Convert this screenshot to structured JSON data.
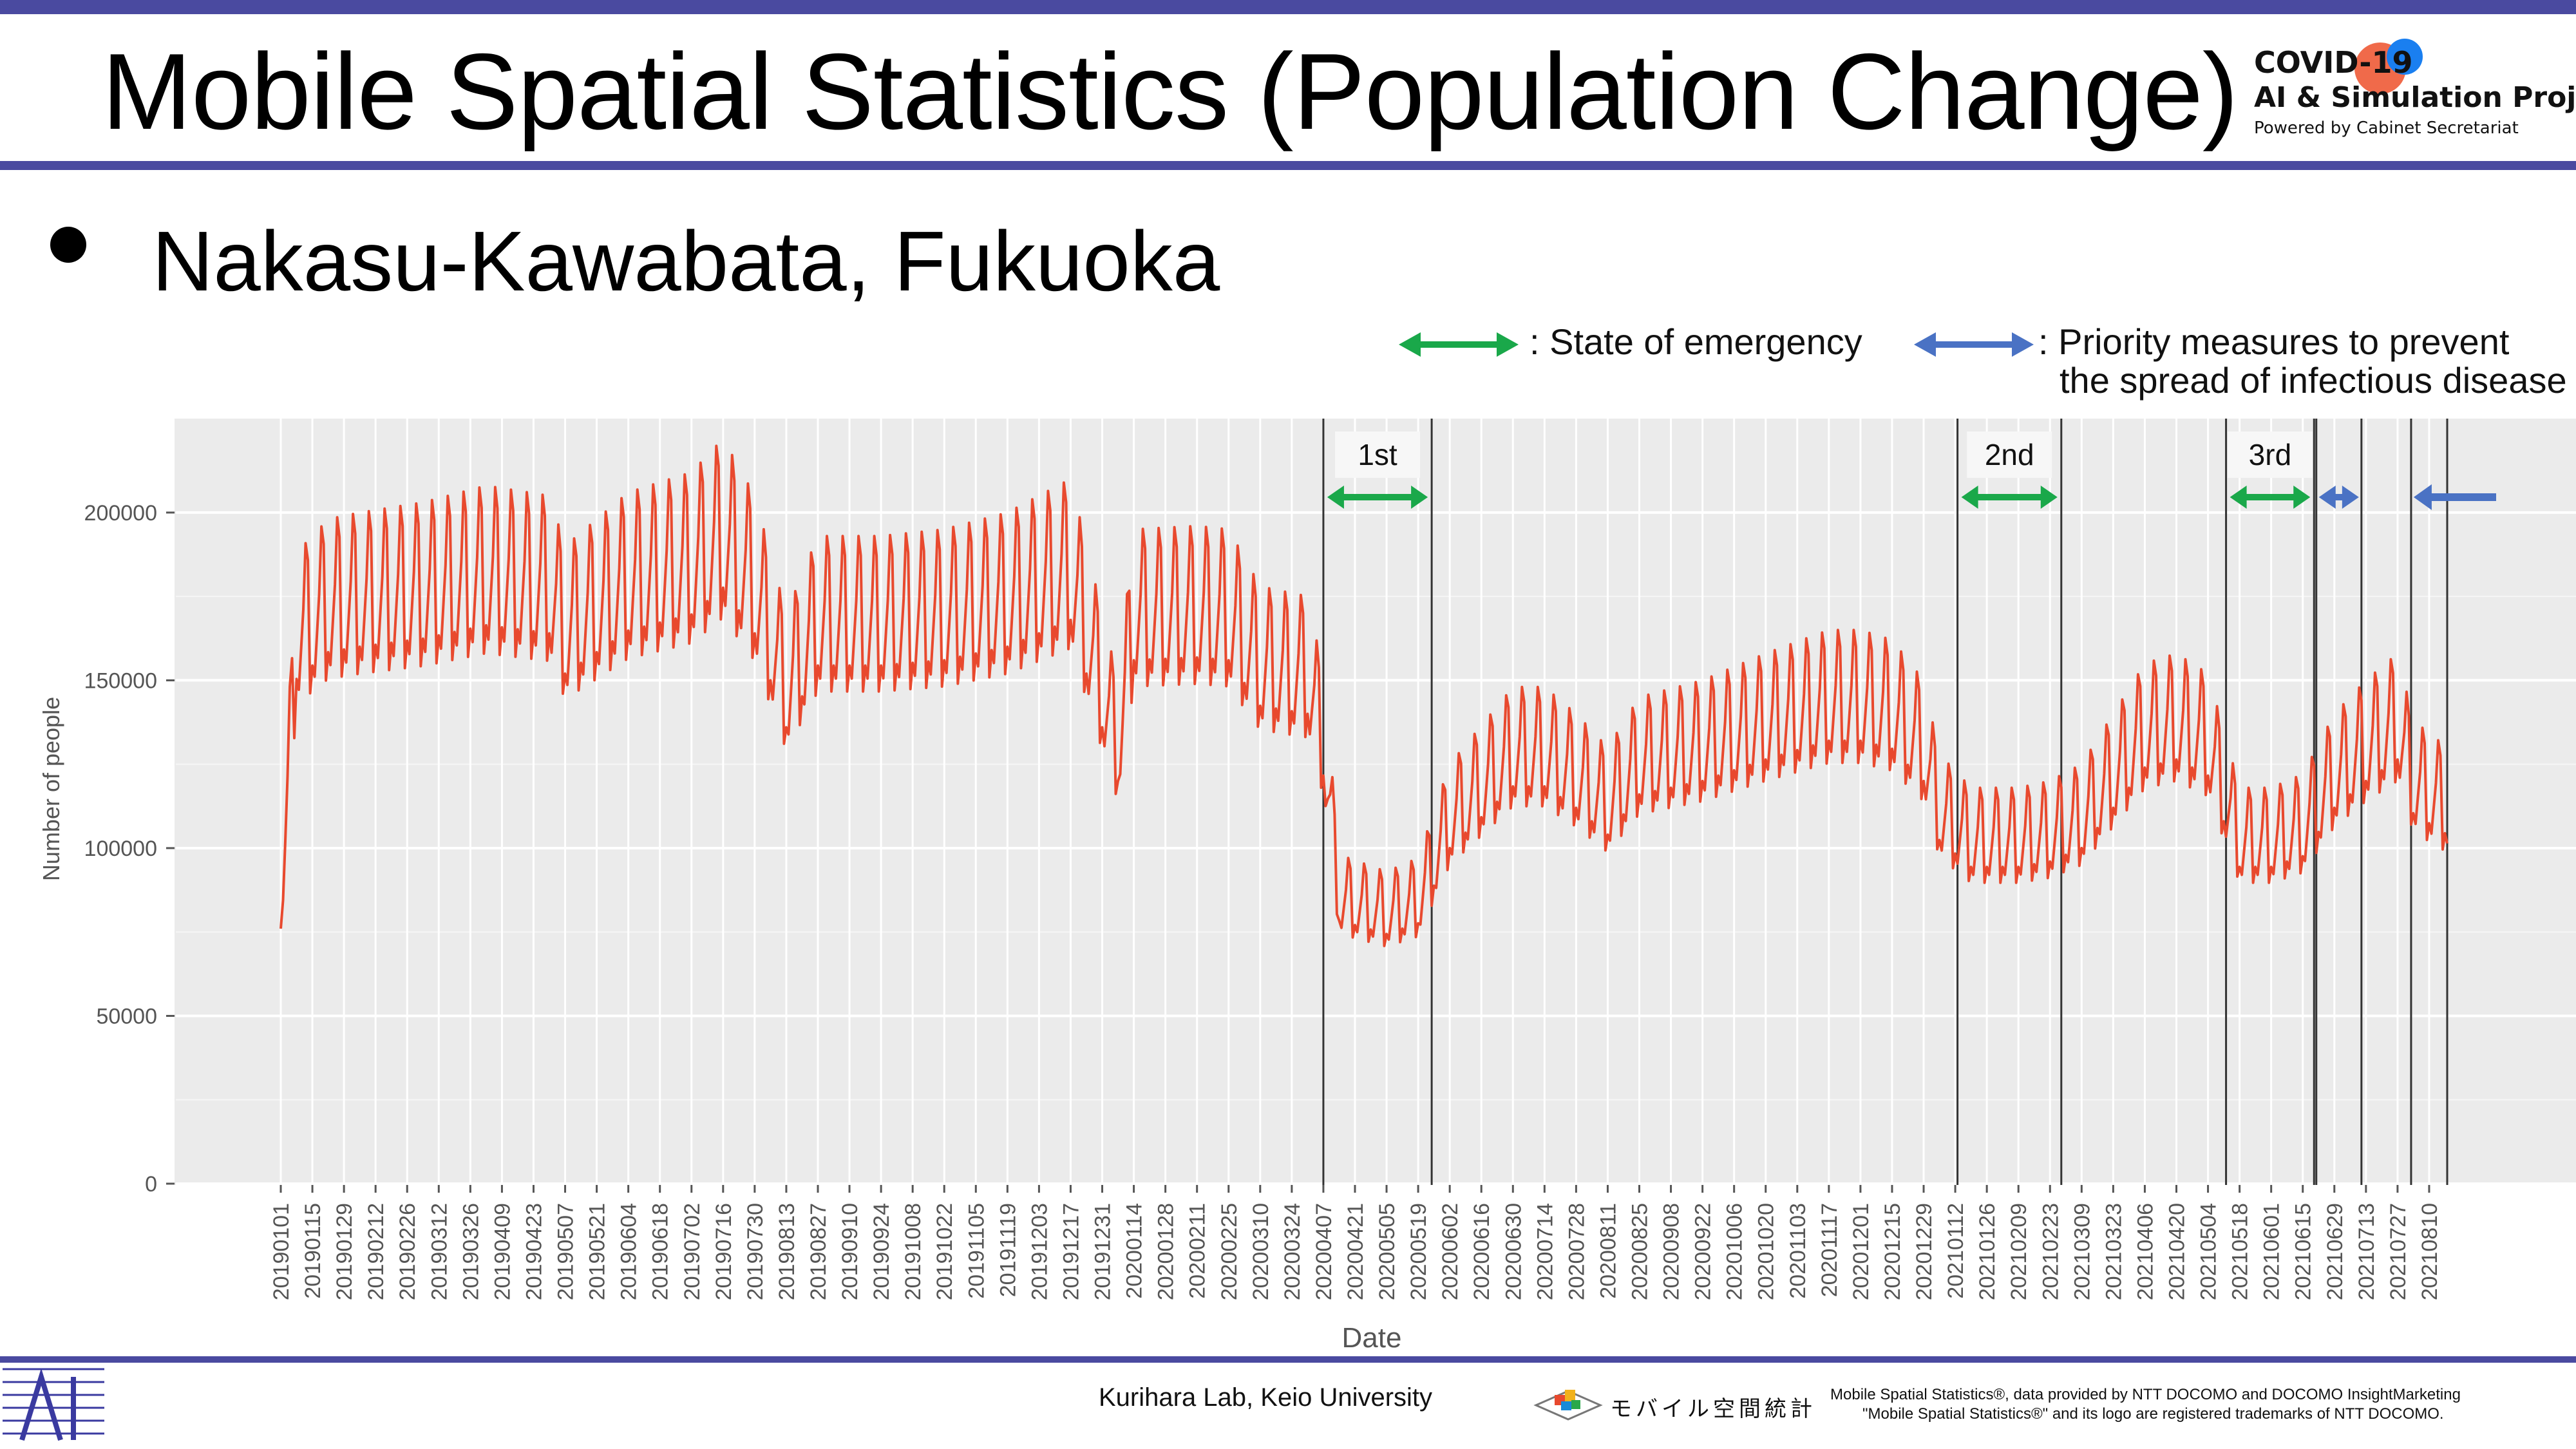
{
  "slide": {
    "title": "Mobile Spatial Statistics (Population Change)",
    "bullet": "Nakasu-Kawabata, Fukuoka",
    "accent_color": "#4a4aa0"
  },
  "brand": {
    "line1": "COVID-19",
    "line2": "AI & Simulation Project",
    "line3": "Powered by Cabinet Secretariat",
    "dot_colors": [
      "#f06a4a",
      "#1a7ff0"
    ]
  },
  "legend": {
    "emergency_label": ": State of emergency",
    "emergency_color": "#1aa84a",
    "priority_label_line1": ": Priority measures to prevent",
    "priority_label_line2": "the spread of infectious disease",
    "priority_color": "#4a72c4"
  },
  "footer": {
    "lab": "Kurihara Lab, Keio University",
    "docomo_logo_text": "モバイル空間統計",
    "credit_line1": "Mobile Spatial Statistics®, data provided by NTT DOCOMO and DOCOMO InsightMarketing",
    "credit_line2": "\"Mobile Spatial Statistics®\" and its logo are registered trademarks of NTT DOCOMO."
  },
  "chart_data": {
    "type": "line",
    "title": "",
    "xlabel": "Date",
    "ylabel": "Number of people",
    "ylim": [
      0,
      228000
    ],
    "x_range": [
      "20190101",
      "20210818"
    ],
    "yticks": [
      0,
      50000,
      100000,
      150000,
      200000
    ],
    "ytick_labels": [
      "0",
      "50000",
      "100000",
      "150000",
      "200000"
    ],
    "xtick_labels": [
      "20190101",
      "20190115",
      "20190129",
      "20190212",
      "20190226",
      "20190312",
      "20190326",
      "20190409",
      "20190423",
      "20190507",
      "20190521",
      "20190604",
      "20190618",
      "20190702",
      "20190716",
      "20190730",
      "20190813",
      "20190827",
      "20190910",
      "20190924",
      "20191008",
      "20191022",
      "20191105",
      "20191119",
      "20191203",
      "20191217",
      "20191231",
      "20200114",
      "20200128",
      "20200211",
      "20200225",
      "20200310",
      "20200324",
      "20200407",
      "20200421",
      "20200505",
      "20200519",
      "20200602",
      "20200616",
      "20200630",
      "20200714",
      "20200728",
      "20200811",
      "20200825",
      "20200908",
      "20200922",
      "20201006",
      "20201020",
      "20201103",
      "20201117",
      "20201201",
      "20201215",
      "20201229",
      "20210112",
      "20210126",
      "20210209",
      "20210223",
      "20210309",
      "20210323",
      "20210406",
      "20210420",
      "20210504",
      "20210518",
      "20210601",
      "20210615",
      "20210629",
      "20210713",
      "20210727",
      "20210810"
    ],
    "grid": true,
    "background": "#ebebeb",
    "series": [
      {
        "color": "#e8492e",
        "weekly_profile": {
          "pattern": "weekly cycle from the weekly trough to the weekly peak",
          "trough_fraction_of_peak": 0.76,
          "peaks": [
            [
              "20190101",
              95000
            ],
            [
              "20190108",
              188000
            ],
            [
              "20190122",
              198000
            ],
            [
              "20190205",
              200000
            ],
            [
              "20190305",
              203000
            ],
            [
              "20190402",
              208000
            ],
            [
              "20190430",
              205000
            ],
            [
              "20190507",
              190000
            ],
            [
              "20190604",
              206000
            ],
            [
              "20190702",
              212000
            ],
            [
              "20190716",
              222000
            ],
            [
              "20190730",
              205000
            ],
            [
              "20190813",
              170000
            ],
            [
              "20190827",
              193000
            ],
            [
              "20190924",
              193000
            ],
            [
              "20191022",
              195000
            ],
            [
              "20191119",
              200000
            ],
            [
              "20191217",
              210000
            ],
            [
              "20191231",
              170000
            ],
            [
              "20200107",
              150000
            ],
            [
              "20200114",
              195000
            ],
            [
              "20200211",
              196000
            ],
            [
              "20200225",
              195000
            ],
            [
              "20200310",
              178000
            ],
            [
              "20200331",
              175000
            ],
            [
              "20200407",
              152000
            ],
            [
              "20200414",
              98000
            ],
            [
              "20200505",
              93000
            ],
            [
              "20200519",
              97000
            ],
            [
              "20200602",
              125000
            ],
            [
              "20200630",
              148000
            ],
            [
              "20200714",
              148000
            ],
            [
              "20200728",
              140000
            ],
            [
              "20200811",
              130000
            ],
            [
              "20200825",
              145000
            ],
            [
              "20200922",
              150000
            ],
            [
              "20201020",
              158000
            ],
            [
              "20201117",
              165000
            ],
            [
              "20201201",
              165000
            ],
            [
              "20201215",
              162000
            ],
            [
              "20201229",
              150000
            ],
            [
              "20210105",
              128000
            ],
            [
              "20210119",
              118000
            ],
            [
              "20210209",
              118000
            ],
            [
              "20210223",
              120000
            ],
            [
              "20210309",
              125000
            ],
            [
              "20210406",
              155000
            ],
            [
              "20210420",
              158000
            ],
            [
              "20210504",
              152000
            ],
            [
              "20210518",
              118000
            ],
            [
              "20210601",
              118000
            ],
            [
              "20210615",
              122000
            ],
            [
              "20210629",
              140000
            ],
            [
              "20210713",
              150000
            ],
            [
              "20210727",
              158000
            ],
            [
              "20210803",
              138000
            ],
            [
              "20210818",
              130000
            ]
          ]
        }
      }
    ],
    "periods": [
      {
        "label": "1st",
        "kind": "State of emergency",
        "start": "20200407",
        "end": "20200525"
      },
      {
        "label": "2nd",
        "kind": "State of emergency",
        "start": "20210113",
        "end": "20210228"
      },
      {
        "label": "3rd",
        "kind": "State of emergency",
        "start": "20210512",
        "end": "20210620"
      },
      {
        "kind": "Priority measures to prevent the spread of infectious disease",
        "start": "20210621",
        "end": "20210711"
      },
      {
        "kind": "Priority measures to prevent the spread of infectious disease",
        "start": "20210802",
        "end": "20210818"
      }
    ]
  }
}
